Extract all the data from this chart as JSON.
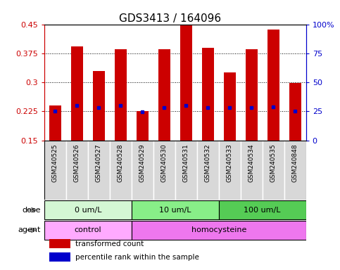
{
  "title": "GDS3413 / 164096",
  "samples": [
    "GSM240525",
    "GSM240526",
    "GSM240527",
    "GSM240528",
    "GSM240529",
    "GSM240530",
    "GSM240531",
    "GSM240532",
    "GSM240533",
    "GSM240534",
    "GSM240535",
    "GSM240848"
  ],
  "red_values": [
    0.24,
    0.392,
    0.33,
    0.385,
    0.225,
    0.385,
    0.449,
    0.39,
    0.325,
    0.385,
    0.436,
    0.298
  ],
  "blue_values": [
    0.2255,
    0.2395,
    0.2355,
    0.2395,
    0.2245,
    0.2355,
    0.2395,
    0.2355,
    0.2345,
    0.2355,
    0.2365,
    0.2255
  ],
  "bar_bottom": 0.15,
  "ylim_left": [
    0.15,
    0.45
  ],
  "ylim_right": [
    0,
    100
  ],
  "yticks_left": [
    0.15,
    0.225,
    0.3,
    0.375,
    0.45
  ],
  "yticks_right": [
    0,
    25,
    50,
    75,
    100
  ],
  "ytick_labels_left": [
    "0.15",
    "0.225",
    "0.3",
    "0.375",
    "0.45"
  ],
  "ytick_labels_right": [
    "0",
    "25",
    "50",
    "75",
    "100%"
  ],
  "red_color": "#cc0000",
  "blue_color": "#0000cc",
  "bar_width": 0.55,
  "dose_groups": [
    {
      "label": "0 um/L",
      "start": 0,
      "end": 4,
      "color": "#d4f7d4"
    },
    {
      "label": "10 um/L",
      "start": 4,
      "end": 8,
      "color": "#88ee88"
    },
    {
      "label": "100 um/L",
      "start": 8,
      "end": 12,
      "color": "#55cc55"
    }
  ],
  "agent_groups": [
    {
      "label": "control",
      "start": 0,
      "end": 4,
      "color": "#ffaaff"
    },
    {
      "label": "homocysteine",
      "start": 4,
      "end": 12,
      "color": "#ee77ee"
    }
  ],
  "dose_label": "dose",
  "agent_label": "agent",
  "legend_red": "transformed count",
  "legend_blue": "percentile rank within the sample",
  "grid_color": "black",
  "plot_bg": "white",
  "label_bg": "#d8d8d8",
  "title_fontsize": 11,
  "red_color_axis": "#cc0000",
  "blue_color_axis": "#0000cc"
}
